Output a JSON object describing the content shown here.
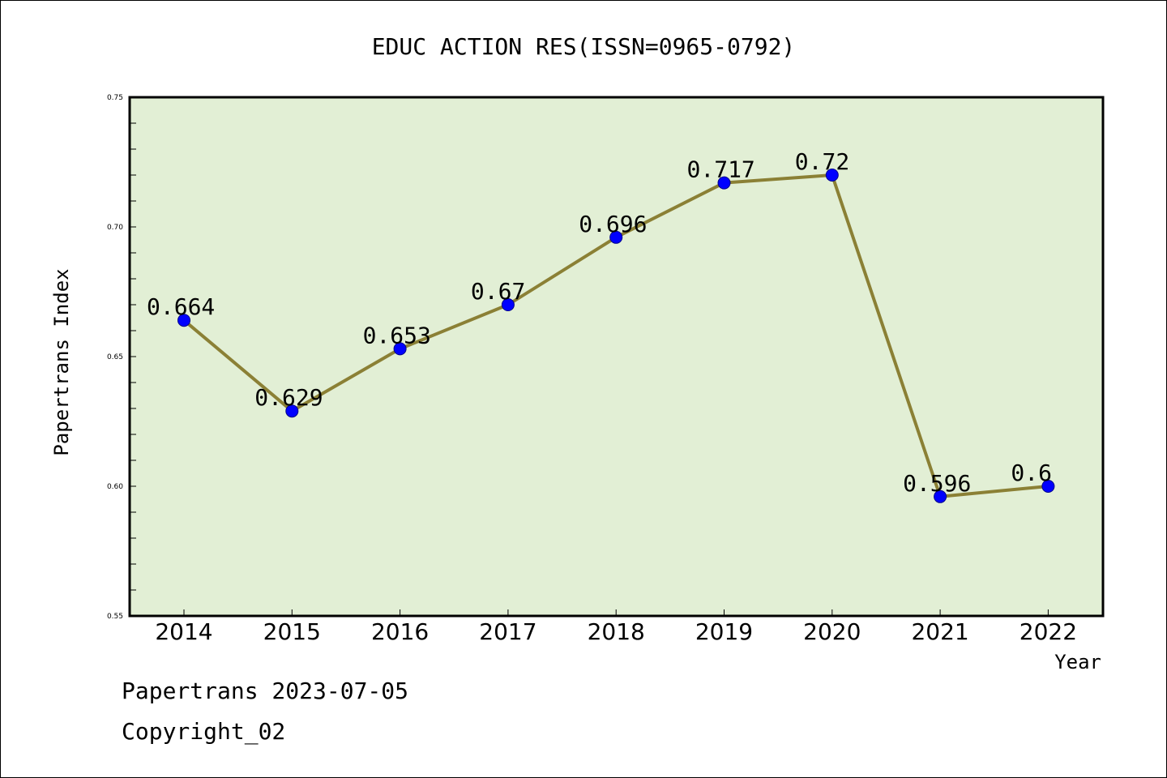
{
  "chart_data": {
    "type": "line",
    "title": "EDUC ACTION RES(ISSN=0965-0792)",
    "xlabel": "Year",
    "ylabel": "Papertrans Index",
    "categories": [
      "2014",
      "2015",
      "2016",
      "2017",
      "2018",
      "2019",
      "2020",
      "2021",
      "2022"
    ],
    "series": [
      {
        "values": [
          0.664,
          0.629,
          0.653,
          0.67,
          0.696,
          0.717,
          0.72,
          0.596,
          0.6
        ],
        "labels": [
          "0.664",
          "0.629",
          "0.653",
          "0.67",
          "0.696",
          "0.717",
          "0.72",
          "0.596",
          "0.6"
        ]
      }
    ],
    "ylim": [
      0.55,
      0.75
    ],
    "yticks": [
      "0.55",
      "0.60",
      "0.65",
      "0.70",
      "0.75"
    ],
    "grid": false,
    "colors": {
      "line": "#8B8035",
      "marker": "#0000FF",
      "plot_bg": "#E2EFD5"
    }
  },
  "footer": {
    "line1": "Papertrans 2023-07-05",
    "line2": "Copyright_02"
  }
}
